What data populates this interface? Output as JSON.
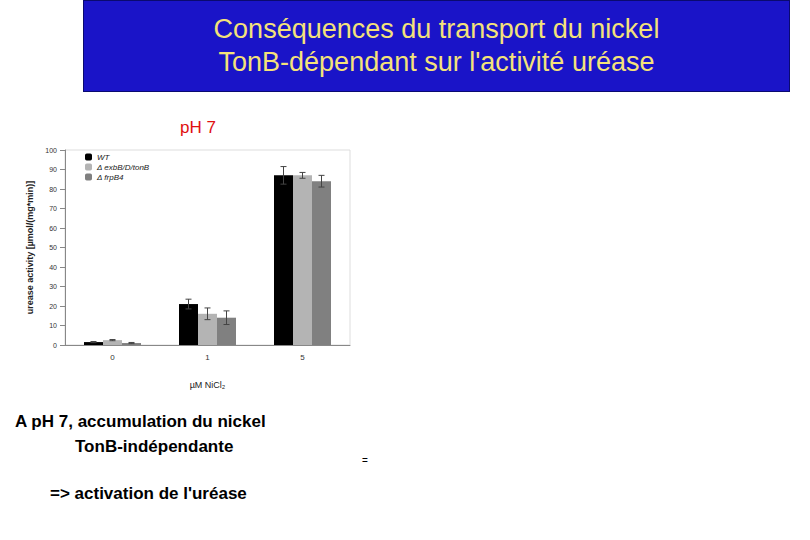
{
  "chart_data": {
    "type": "bar",
    "title": "Conséquences du transport du nickel\nTonB-dépendant sur l'activité uréase",
    "subtitle": "pH 7",
    "x_label": "µM NiCl₂",
    "y_label": "urease activity [µmol/(mg*min)]",
    "categories": [
      "0",
      "1",
      "5"
    ],
    "series": [
      {
        "name": "WT",
        "color": "#000000",
        "values": [
          1.5,
          21,
          87
        ],
        "errors": [
          0.3,
          2.5,
          4.5
        ]
      },
      {
        "name": "Δ exbB/D/tonB",
        "color": "#b4b4b4",
        "values": [
          2.5,
          16,
          87
        ],
        "errors": [
          0.3,
          3,
          1.5
        ]
      },
      {
        "name": "Δ frpB4",
        "color": "#808080",
        "values": [
          1,
          14,
          84
        ],
        "errors": [
          0.3,
          3.5,
          3
        ]
      }
    ],
    "ylim": [
      0,
      100
    ],
    "yticks": [
      0,
      10,
      20,
      30,
      40,
      50,
      60,
      70,
      80,
      90,
      100
    ],
    "grid": false,
    "legend": "upper left",
    "annotations": [
      "A pH 7, accumulation du nickel",
      "TonB-indépendante",
      "=> activation de l'uréase",
      "="
    ]
  }
}
